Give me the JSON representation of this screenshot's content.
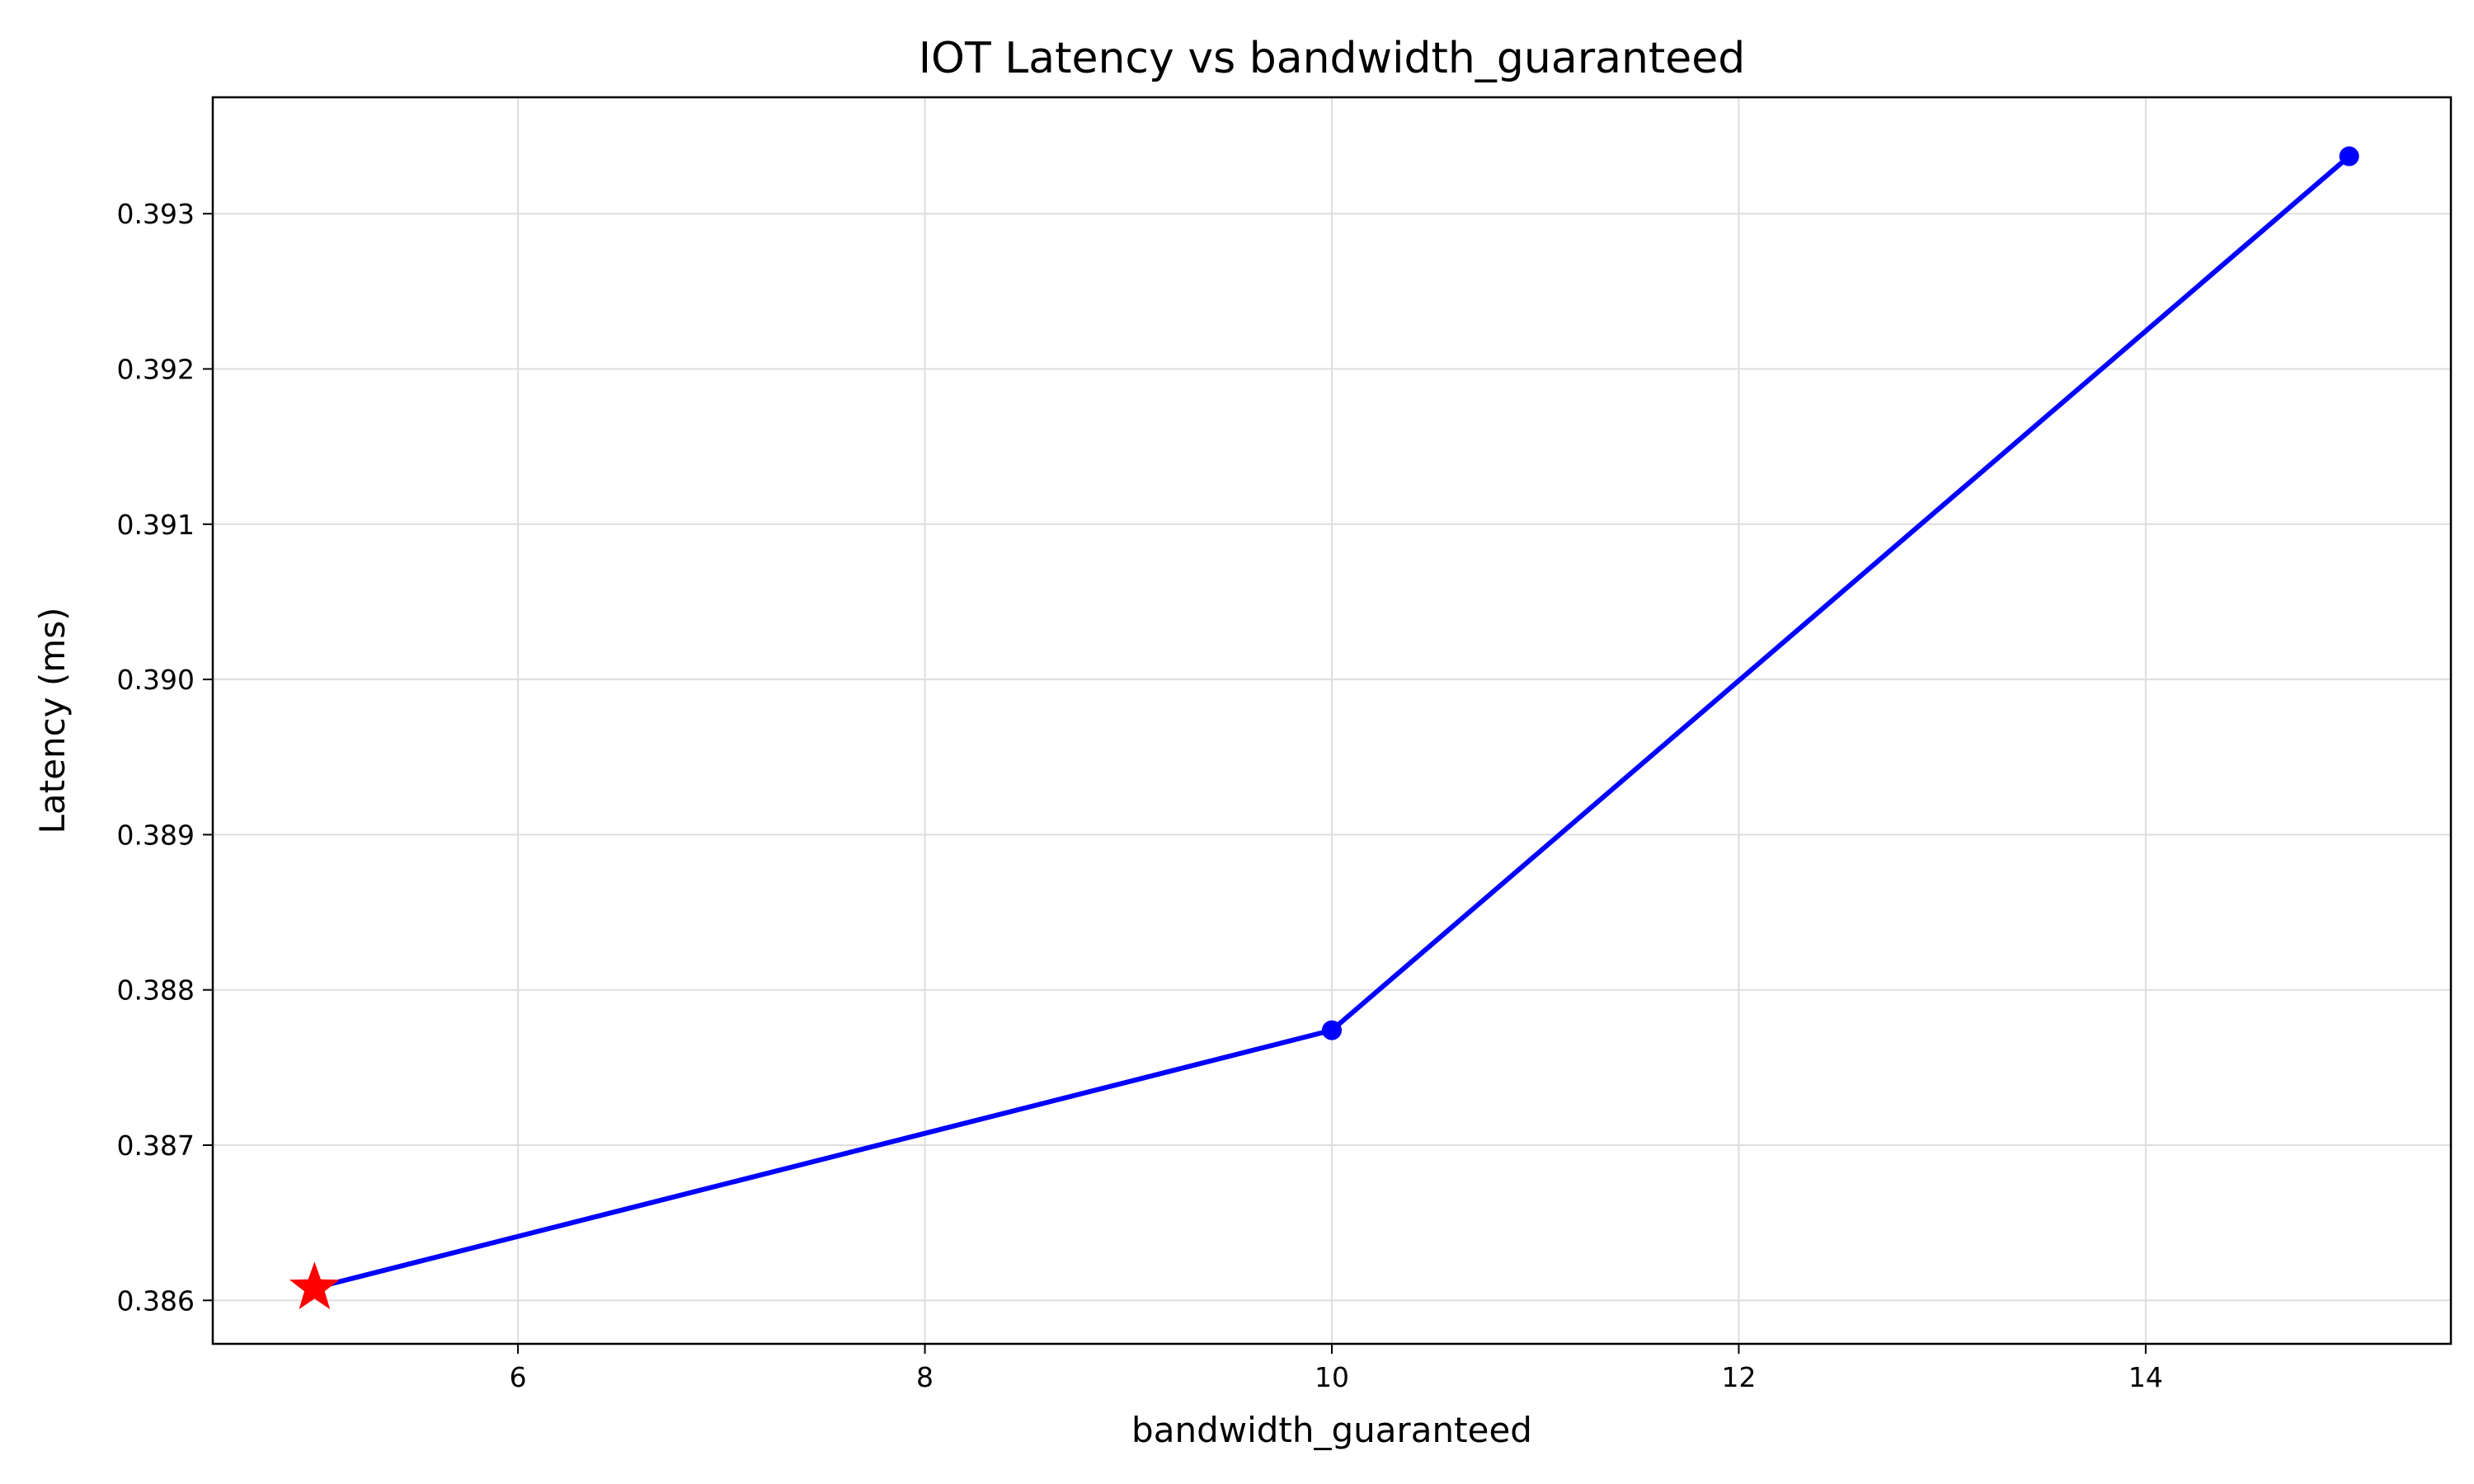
{
  "chart_data": {
    "type": "line",
    "title": "IOT Latency vs bandwidth_guaranteed",
    "xlabel": "bandwidth_guaranteed",
    "ylabel": "Latency (ms)",
    "xlim": [
      4.5,
      15.5
    ],
    "ylim": [
      0.38572,
      0.39375
    ],
    "x_ticks": [
      6,
      8,
      10,
      12,
      14
    ],
    "y_ticks": [
      0.386,
      0.387,
      0.388,
      0.389,
      0.39,
      0.391,
      0.392,
      0.393
    ],
    "grid": true,
    "series": [
      {
        "x": [
          5,
          10,
          15
        ],
        "y": [
          0.38608,
          0.38774,
          0.39337
        ],
        "color": "#0000ff",
        "marker": "circle"
      }
    ],
    "highlight_point": {
      "x": 5,
      "y": 0.38608,
      "marker": "star",
      "color": "#ff0000"
    }
  }
}
